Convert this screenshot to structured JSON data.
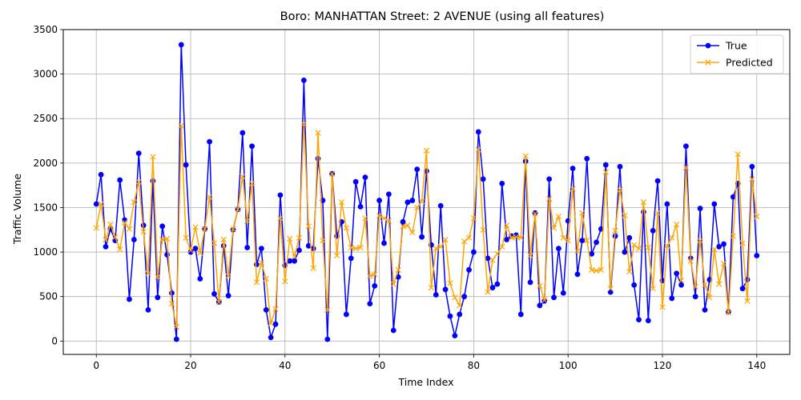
{
  "chart_data": {
    "type": "line",
    "title": "Boro: MANHATTAN Street: 2 AVENUE (using all features)",
    "xlabel": "Time Index",
    "ylabel": "Traffic Volume",
    "xlim": [
      -7,
      147
    ],
    "ylim": [
      -150,
      3500
    ],
    "xticks": [
      0,
      20,
      40,
      60,
      80,
      100,
      120,
      140
    ],
    "yticks": [
      0,
      500,
      1000,
      1500,
      2000,
      2500,
      3000,
      3500
    ],
    "grid": true,
    "legend_position": "top-right",
    "series": [
      {
        "name": "True",
        "color": "#0000ff",
        "marker": "circle",
        "values": [
          1540,
          1870,
          1060,
          1260,
          1130,
          1810,
          1360,
          470,
          1140,
          2110,
          1300,
          350,
          1800,
          490,
          1290,
          970,
          540,
          20,
          3330,
          1980,
          1000,
          1040,
          700,
          1260,
          2240,
          530,
          440,
          1070,
          510,
          1250,
          1480,
          2340,
          1050,
          2190,
          860,
          1040,
          350,
          40,
          190,
          1640,
          850,
          900,
          900,
          1020,
          2930,
          1070,
          1040,
          2050,
          1580,
          20,
          1880,
          1180,
          1340,
          300,
          930,
          1790,
          1510,
          1840,
          420,
          620,
          1580,
          1100,
          1650,
          120,
          720,
          1340,
          1560,
          1580,
          1930,
          1170,
          1910,
          1080,
          520,
          1520,
          580,
          280,
          60,
          300,
          500,
          800,
          1000,
          2350,
          1820,
          930,
          600,
          640,
          1770,
          1140,
          1180,
          1190,
          300,
          2020,
          660,
          1440,
          400,
          450,
          1820,
          490,
          1040,
          540,
          1350,
          1940,
          750,
          1130,
          2050,
          980,
          1110,
          1260,
          1980,
          550,
          1180,
          1960,
          1000,
          1160,
          630,
          240,
          1450,
          230,
          1240,
          1800,
          680,
          1540,
          480,
          760,
          630,
          2190,
          930,
          500,
          1490,
          350,
          690,
          1540,
          1060,
          1090,
          330,
          1620,
          1770,
          590,
          690,
          1960,
          960
        ]
      },
      {
        "name": "Predicted",
        "color": "#ffa500",
        "marker": "x",
        "values": [
          1270,
          1540,
          1140,
          1310,
          1170,
          1030,
          1330,
          1260,
          1560,
          1790,
          1230,
          760,
          2070,
          720,
          1140,
          1150,
          420,
          160,
          2420,
          1160,
          1020,
          1280,
          990,
          1260,
          1620,
          1100,
          440,
          1140,
          730,
          1260,
          1480,
          1850,
          1350,
          1770,
          660,
          880,
          700,
          200,
          360,
          1380,
          670,
          1150,
          950,
          1160,
          2440,
          1290,
          820,
          2340,
          1130,
          350,
          1880,
          960,
          1560,
          1270,
          1050,
          1040,
          1050,
          1380,
          730,
          750,
          1410,
          1380,
          1350,
          640,
          800,
          1290,
          1300,
          1220,
          1500,
          1570,
          2140,
          600,
          1040,
          1060,
          1140,
          650,
          490,
          400,
          1120,
          1160,
          1380,
          2150,
          1250,
          550,
          910,
          980,
          1060,
          1300,
          1160,
          1170,
          1160,
          2080,
          960,
          1430,
          620,
          460,
          1600,
          1270,
          1400,
          1160,
          1130,
          1710,
          1010,
          1440,
          1130,
          800,
          790,
          800,
          1900,
          590,
          1240,
          1700,
          1410,
          780,
          1080,
          1040,
          1560,
          1050,
          590,
          1440,
          380,
          1070,
          1160,
          1310,
          680,
          1950,
          900,
          610,
          1130,
          630,
          490,
          1030,
          640,
          870,
          320,
          1180,
          2100,
          1100,
          450,
          1820,
          1400
        ]
      }
    ]
  }
}
